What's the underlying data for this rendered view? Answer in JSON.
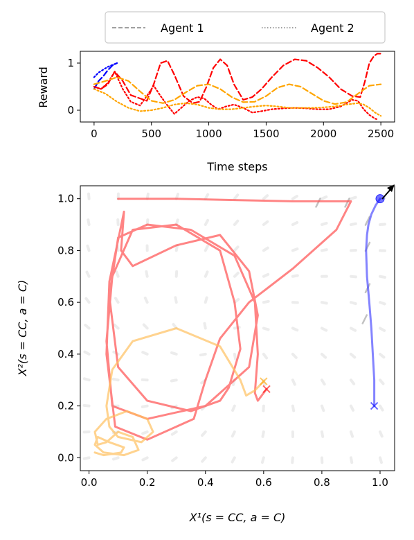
{
  "legend": {
    "entries": [
      {
        "label": "Agent 1",
        "style": "dashed",
        "color": "#808080"
      },
      {
        "label": "Agent 2",
        "style": "dotted",
        "color": "#808080"
      }
    ]
  },
  "chart_data": [
    {
      "type": "line",
      "title": "",
      "xlabel": "Time steps",
      "ylabel": "Reward",
      "xlim": [
        -120,
        2620
      ],
      "ylim": [
        -0.25,
        1.25
      ],
      "xticks": [
        0,
        500,
        1000,
        1500,
        2000,
        2500
      ],
      "yticks": [
        0,
        1
      ],
      "series": [
        {
          "color": "#0000ff",
          "style": "dashed",
          "x": [
            0,
            40,
            80,
            120,
            160,
            200
          ],
          "y": [
            0.45,
            0.62,
            0.72,
            0.85,
            0.95,
            1.0
          ]
        },
        {
          "color": "#0000ff",
          "style": "dotted",
          "x": [
            0,
            40,
            80,
            120,
            160,
            200
          ],
          "y": [
            0.7,
            0.8,
            0.86,
            0.92,
            0.96,
            1.0
          ]
        },
        {
          "color": "#ff0000",
          "style": "dashed",
          "x": [
            0,
            60,
            120,
            180,
            250,
            320,
            400,
            460,
            520,
            580,
            640,
            700,
            780,
            860,
            920,
            980,
            1040,
            1100,
            1160,
            1220,
            1300,
            1380,
            1460,
            1550,
            1650,
            1750,
            1850,
            1950,
            2050,
            2150,
            2250,
            2320,
            2360,
            2400,
            2440,
            2470,
            2500
          ],
          "y": [
            0.5,
            0.45,
            0.55,
            0.82,
            0.62,
            0.32,
            0.25,
            0.2,
            0.55,
            1.0,
            1.05,
            0.75,
            0.3,
            0.15,
            0.18,
            0.5,
            0.9,
            1.08,
            0.95,
            0.55,
            0.22,
            0.28,
            0.45,
            0.7,
            0.95,
            1.08,
            1.05,
            0.9,
            0.7,
            0.45,
            0.3,
            0.28,
            0.6,
            1.0,
            1.15,
            1.2,
            1.2
          ]
        },
        {
          "color": "#ff0000",
          "style": "dotted",
          "x": [
            0,
            60,
            120,
            180,
            250,
            320,
            400,
            460,
            520,
            580,
            640,
            700,
            760,
            830,
            900,
            960,
            1020,
            1080,
            1150,
            1220,
            1300,
            1380,
            1460,
            1550,
            1650,
            1750,
            1850,
            1950,
            2050,
            2150,
            2250,
            2300,
            2350,
            2400,
            2450,
            2480
          ],
          "y": [
            0.5,
            0.45,
            0.58,
            0.82,
            0.45,
            0.18,
            0.1,
            0.3,
            0.52,
            0.3,
            0.1,
            -0.08,
            0.05,
            0.2,
            0.28,
            0.25,
            0.12,
            0.02,
            0.08,
            0.12,
            0.05,
            -0.05,
            -0.02,
            0.02,
            0.04,
            0.05,
            0.04,
            0.02,
            0.02,
            0.08,
            0.22,
            0.2,
            0.02,
            -0.1,
            -0.18,
            -0.2
          ]
        },
        {
          "color": "#ffa500",
          "style": "dashed",
          "x": [
            0,
            100,
            200,
            300,
            400,
            500,
            600,
            700,
            800,
            900,
            1000,
            1100,
            1200,
            1300,
            1400,
            1500,
            1600,
            1700,
            1800,
            1900,
            2000,
            2100,
            2200,
            2300,
            2400,
            2500
          ],
          "y": [
            0.55,
            0.62,
            0.7,
            0.62,
            0.4,
            0.2,
            0.15,
            0.22,
            0.38,
            0.52,
            0.55,
            0.45,
            0.28,
            0.17,
            0.18,
            0.3,
            0.48,
            0.55,
            0.5,
            0.35,
            0.2,
            0.13,
            0.17,
            0.35,
            0.52,
            0.55
          ]
        },
        {
          "color": "#ffa500",
          "style": "dotted",
          "x": [
            0,
            100,
            200,
            300,
            400,
            500,
            600,
            700,
            800,
            900,
            1000,
            1100,
            1200,
            1300,
            1400,
            1500,
            1600,
            1700,
            1800,
            1900,
            2000,
            2100,
            2200,
            2300,
            2350,
            2400,
            2450,
            2500
          ],
          "y": [
            0.45,
            0.35,
            0.18,
            0.05,
            -0.02,
            0.0,
            0.05,
            0.12,
            0.15,
            0.12,
            0.05,
            0.02,
            0.02,
            0.05,
            0.08,
            0.1,
            0.08,
            0.05,
            0.05,
            0.05,
            0.06,
            0.08,
            0.12,
            0.15,
            0.12,
            0.05,
            -0.05,
            -0.12
          ]
        }
      ]
    },
    {
      "type": "line",
      "title": "",
      "xlabel": "X¹(s = CC, a = C)",
      "ylabel": "X²(s = CC, a = C)",
      "xlim": [
        -0.03,
        1.05
      ],
      "ylim": [
        -0.05,
        1.05
      ],
      "xticks": [
        0.0,
        0.2,
        0.4,
        0.6,
        0.8,
        1.0
      ],
      "yticks": [
        0.0,
        0.2,
        0.4,
        0.6,
        0.8,
        1.0
      ],
      "markers": [
        {
          "color": "#ff0000",
          "symbol": "x",
          "x": 0.61,
          "y": 0.265
        },
        {
          "color": "#ffa500",
          "symbol": "x",
          "x": 0.6,
          "y": 0.295
        },
        {
          "color": "#0000ff",
          "symbol": "x",
          "x": 0.98,
          "y": 0.2
        },
        {
          "color": "#0000ff",
          "symbol": "o",
          "x": 1.0,
          "y": 1.0
        }
      ],
      "series": [
        {
          "color": "#ff5050",
          "style": "solid",
          "x": [
            0.1,
            0.3,
            0.5,
            0.7,
            0.9,
            0.85,
            0.7,
            0.55,
            0.45,
            0.4,
            0.36,
            0.2,
            0.09,
            0.06,
            0.07,
            0.1,
            0.12,
            0.11,
            0.15,
            0.3,
            0.45,
            0.55,
            0.58,
            0.55,
            0.4,
            0.2,
            0.08,
            0.06,
            0.08,
            0.15,
            0.3,
            0.45,
            0.5,
            0.52,
            0.48,
            0.45,
            0.35,
            0.2,
            0.1,
            0.07,
            0.1,
            0.2,
            0.35,
            0.5,
            0.57,
            0.58,
            0.57,
            0.58,
            0.61
          ],
          "y": [
            1.0,
            1.0,
            0.995,
            0.99,
            0.99,
            0.88,
            0.73,
            0.6,
            0.46,
            0.3,
            0.15,
            0.07,
            0.12,
            0.4,
            0.68,
            0.84,
            0.95,
            0.8,
            0.74,
            0.82,
            0.86,
            0.72,
            0.55,
            0.35,
            0.2,
            0.15,
            0.2,
            0.45,
            0.7,
            0.88,
            0.9,
            0.8,
            0.6,
            0.42,
            0.27,
            0.22,
            0.18,
            0.22,
            0.35,
            0.62,
            0.85,
            0.9,
            0.88,
            0.78,
            0.6,
            0.4,
            0.25,
            0.22,
            0.265
          ]
        },
        {
          "color": "#ffc060",
          "style": "solid",
          "x": [
            0.6,
            0.57,
            0.54,
            0.52,
            0.45,
            0.3,
            0.15,
            0.08,
            0.06,
            0.07,
            0.1,
            0.18,
            0.22,
            0.2,
            0.13,
            0.06,
            0.02,
            0.03,
            0.06,
            0.1,
            0.15,
            0.17,
            0.12,
            0.05,
            0.02,
            0.03,
            0.07,
            0.12,
            0.11,
            0.05,
            0.02
          ],
          "y": [
            0.295,
            0.26,
            0.24,
            0.3,
            0.43,
            0.5,
            0.45,
            0.34,
            0.2,
            0.12,
            0.08,
            0.06,
            0.1,
            0.15,
            0.18,
            0.15,
            0.1,
            0.05,
            0.06,
            0.1,
            0.08,
            0.03,
            0.01,
            0.02,
            0.05,
            0.08,
            0.06,
            0.04,
            0.02,
            0.01,
            0.02
          ]
        },
        {
          "color": "#5050ff",
          "style": "solid",
          "x": [
            0.98,
            0.98,
            0.975,
            0.97,
            0.963,
            0.955,
            0.952,
            0.955,
            0.96,
            0.97,
            0.985,
            1.0
          ],
          "y": [
            0.2,
            0.3,
            0.4,
            0.5,
            0.6,
            0.7,
            0.8,
            0.86,
            0.9,
            0.94,
            0.975,
            1.0
          ]
        }
      ]
    }
  ]
}
